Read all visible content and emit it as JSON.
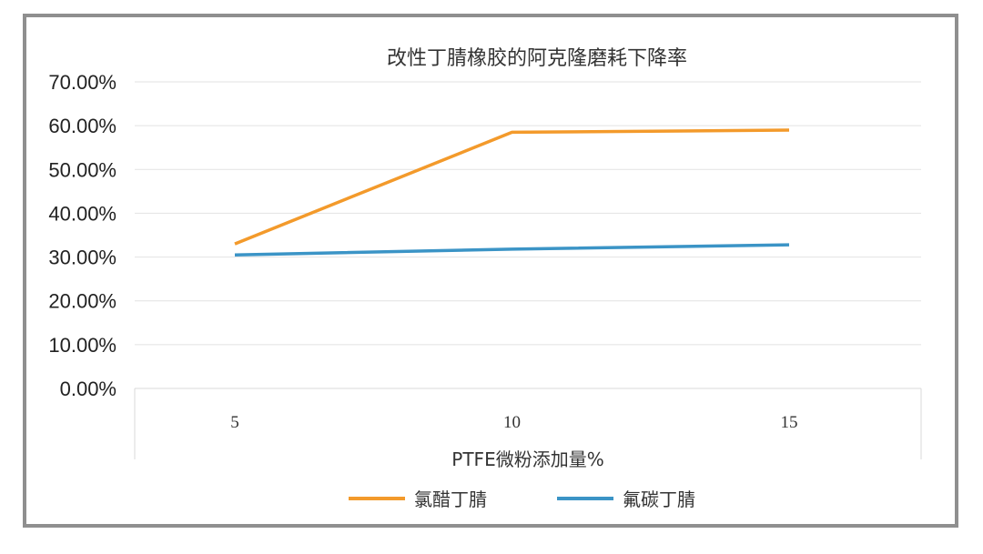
{
  "chart_data": {
    "type": "line",
    "title": "改性丁腈橡胶的阿克隆磨耗下降率",
    "xlabel": "PTFE微粉添加量%",
    "ylabel": "",
    "categories": [
      "5",
      "10",
      "15"
    ],
    "y_ticks": [
      "0.00%",
      "10.00%",
      "20.00%",
      "30.00%",
      "40.00%",
      "50.00%",
      "60.00%",
      "70.00%"
    ],
    "ylim": [
      0,
      0.7
    ],
    "grid": true,
    "legend_position": "bottom",
    "series": [
      {
        "name": "氯醋丁腈",
        "color": "#F39A2B",
        "values": [
          0.33,
          0.585,
          0.59
        ]
      },
      {
        "name": "氟碳丁腈",
        "color": "#3B94C6",
        "values": [
          0.305,
          0.318,
          0.328
        ]
      }
    ]
  }
}
